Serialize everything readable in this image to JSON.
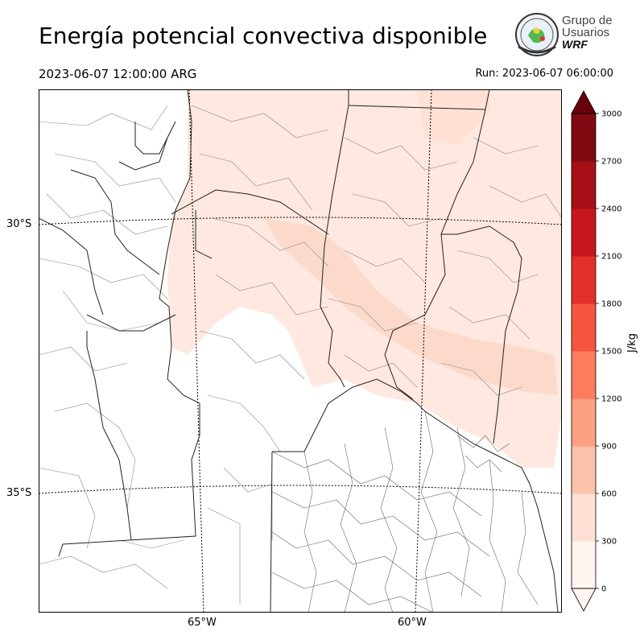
{
  "header": {
    "title": "Energía potencial convectiva disponible",
    "valid_time": "2023-06-07 12:00:00 ARG",
    "run_time": "Run: 2023-06-07 06:00:00"
  },
  "logo": {
    "line1": "Grupo de",
    "line2": "Usuarios",
    "line3": "WRF"
  },
  "map": {
    "lat_labels": [
      "30°S",
      "35°S"
    ],
    "lon_labels": [
      "65°W",
      "60°W"
    ],
    "fill_color": "#fee8df",
    "fill_color_strong": "#fcdacb"
  },
  "colorbar": {
    "label": "J/kg",
    "ticks": [
      "0",
      "300",
      "600",
      "900",
      "1200",
      "1500",
      "1800",
      "2100",
      "2400",
      "2700",
      "3000"
    ],
    "colors": [
      "#fff5f0",
      "#fee1d4",
      "#fcc2aa",
      "#fca082",
      "#fb7d5d",
      "#f5553d",
      "#e32f27",
      "#c5171c",
      "#a50f15",
      "#7f0a11"
    ],
    "over_color": "#67000d"
  },
  "chart_data": {
    "type": "heatmap",
    "title": "Energía potencial convectiva disponible",
    "variable_unit": "J/kg",
    "colorbar_range": [
      0,
      3000
    ],
    "colorbar_step": 300,
    "lat_ticks": [
      "30°S",
      "35°S"
    ],
    "lon_ticks": [
      "65°W",
      "60°W"
    ]
  }
}
